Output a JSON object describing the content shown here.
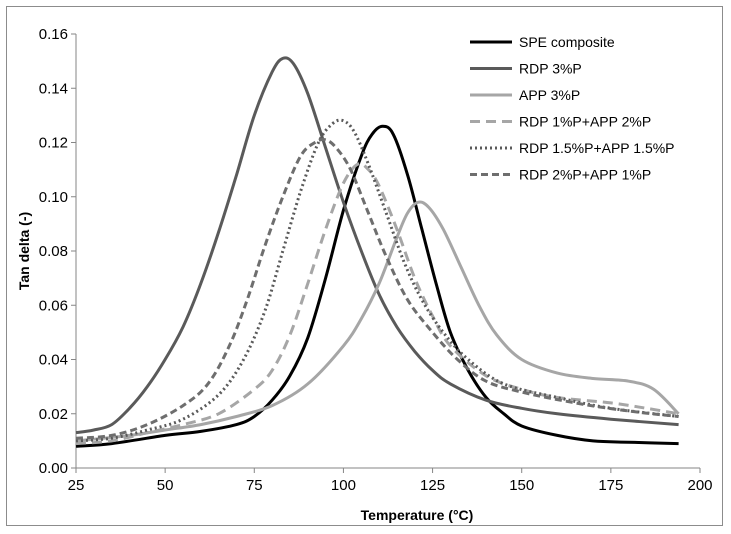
{
  "chart_data": {
    "type": "line",
    "xlabel": "Temperature (°C)",
    "ylabel": "Tan delta (-)",
    "xlim": [
      25,
      200
    ],
    "ylim": [
      0,
      0.16
    ],
    "x_ticks": [
      "25",
      "50",
      "75",
      "100",
      "125",
      "150",
      "175",
      "200"
    ],
    "y_ticks": [
      "0.00",
      "0.02",
      "0.04",
      "0.06",
      "0.08",
      "0.10",
      "0.12",
      "0.14",
      "0.16"
    ],
    "grid": false,
    "legend_position": "top-right",
    "series": [
      {
        "name": "SPE composite",
        "color": "#000000",
        "dash": "solid",
        "points": [
          [
            25,
            0.008
          ],
          [
            35,
            0.009
          ],
          [
            50,
            0.012
          ],
          [
            60,
            0.0135
          ],
          [
            70,
            0.016
          ],
          [
            75,
            0.019
          ],
          [
            80,
            0.025
          ],
          [
            85,
            0.034
          ],
          [
            90,
            0.048
          ],
          [
            95,
            0.07
          ],
          [
            100,
            0.095
          ],
          [
            105,
            0.115
          ],
          [
            108,
            0.123
          ],
          [
            111,
            0.126
          ],
          [
            114,
            0.123
          ],
          [
            118,
            0.108
          ],
          [
            122,
            0.088
          ],
          [
            126,
            0.068
          ],
          [
            130,
            0.05
          ],
          [
            135,
            0.036
          ],
          [
            140,
            0.026
          ],
          [
            145,
            0.02
          ],
          [
            150,
            0.0155
          ],
          [
            160,
            0.012
          ],
          [
            170,
            0.01
          ],
          [
            180,
            0.0095
          ],
          [
            194,
            0.009
          ]
        ]
      },
      {
        "name": "RDP 3%P",
        "color": "#5a5a5a",
        "dash": "solid",
        "points": [
          [
            25,
            0.013
          ],
          [
            30,
            0.014
          ],
          [
            35,
            0.016
          ],
          [
            40,
            0.022
          ],
          [
            45,
            0.03
          ],
          [
            50,
            0.04
          ],
          [
            55,
            0.052
          ],
          [
            60,
            0.068
          ],
          [
            65,
            0.087
          ],
          [
            70,
            0.108
          ],
          [
            75,
            0.13
          ],
          [
            80,
            0.146
          ],
          [
            83,
            0.151
          ],
          [
            86,
            0.149
          ],
          [
            90,
            0.138
          ],
          [
            95,
            0.118
          ],
          [
            100,
            0.098
          ],
          [
            105,
            0.08
          ],
          [
            110,
            0.064
          ],
          [
            115,
            0.052
          ],
          [
            120,
            0.043
          ],
          [
            125,
            0.036
          ],
          [
            130,
            0.031
          ],
          [
            140,
            0.025
          ],
          [
            150,
            0.022
          ],
          [
            160,
            0.02
          ],
          [
            175,
            0.018
          ],
          [
            194,
            0.016
          ]
        ]
      },
      {
        "name": "APP 3%P",
        "color": "#a6a6a6",
        "dash": "solid",
        "points": [
          [
            25,
            0.01
          ],
          [
            40,
            0.012
          ],
          [
            50,
            0.014
          ],
          [
            60,
            0.016
          ],
          [
            70,
            0.019
          ],
          [
            80,
            0.023
          ],
          [
            90,
            0.031
          ],
          [
            100,
            0.045
          ],
          [
            105,
            0.055
          ],
          [
            110,
            0.068
          ],
          [
            115,
            0.085
          ],
          [
            118,
            0.094
          ],
          [
            121,
            0.098
          ],
          [
            124,
            0.096
          ],
          [
            128,
            0.088
          ],
          [
            133,
            0.074
          ],
          [
            138,
            0.06
          ],
          [
            143,
            0.049
          ],
          [
            150,
            0.04
          ],
          [
            160,
            0.035
          ],
          [
            170,
            0.033
          ],
          [
            180,
            0.032
          ],
          [
            187,
            0.029
          ],
          [
            194,
            0.02
          ]
        ]
      },
      {
        "name": "RDP 1%P+APP 2%P",
        "color": "#a6a6a6",
        "dash": "10,6",
        "points": [
          [
            25,
            0.009
          ],
          [
            35,
            0.01
          ],
          [
            45,
            0.013
          ],
          [
            55,
            0.016
          ],
          [
            65,
            0.02
          ],
          [
            75,
            0.029
          ],
          [
            80,
            0.036
          ],
          [
            85,
            0.049
          ],
          [
            90,
            0.068
          ],
          [
            95,
            0.088
          ],
          [
            100,
            0.105
          ],
          [
            104,
            0.112
          ],
          [
            107,
            0.11
          ],
          [
            110,
            0.104
          ],
          [
            115,
            0.088
          ],
          [
            120,
            0.07
          ],
          [
            125,
            0.056
          ],
          [
            130,
            0.045
          ],
          [
            140,
            0.034
          ],
          [
            150,
            0.029
          ],
          [
            160,
            0.026
          ],
          [
            175,
            0.024
          ],
          [
            185,
            0.022
          ],
          [
            194,
            0.02
          ]
        ]
      },
      {
        "name": "RDP 1.5%P+APP 1.5%P",
        "color": "#5a5a5a",
        "dash": "2,3",
        "points": [
          [
            25,
            0.01
          ],
          [
            35,
            0.011
          ],
          [
            45,
            0.014
          ],
          [
            55,
            0.018
          ],
          [
            65,
            0.027
          ],
          [
            72,
            0.04
          ],
          [
            78,
            0.058
          ],
          [
            83,
            0.08
          ],
          [
            88,
            0.102
          ],
          [
            93,
            0.12
          ],
          [
            97,
            0.127
          ],
          [
            100,
            0.128
          ],
          [
            103,
            0.124
          ],
          [
            107,
            0.112
          ],
          [
            112,
            0.094
          ],
          [
            117,
            0.076
          ],
          [
            122,
            0.062
          ],
          [
            128,
            0.05
          ],
          [
            135,
            0.04
          ],
          [
            145,
            0.031
          ],
          [
            160,
            0.026
          ],
          [
            175,
            0.022
          ],
          [
            194,
            0.019
          ]
        ]
      },
      {
        "name": "RDP 2%P+APP 1%P",
        "color": "#6e6e6e",
        "dash": "7,4",
        "points": [
          [
            25,
            0.011
          ],
          [
            35,
            0.012
          ],
          [
            45,
            0.016
          ],
          [
            55,
            0.023
          ],
          [
            62,
            0.031
          ],
          [
            68,
            0.045
          ],
          [
            73,
            0.062
          ],
          [
            78,
            0.082
          ],
          [
            83,
            0.1
          ],
          [
            88,
            0.115
          ],
          [
            92,
            0.12
          ],
          [
            95,
            0.121
          ],
          [
            98,
            0.118
          ],
          [
            102,
            0.11
          ],
          [
            107,
            0.094
          ],
          [
            112,
            0.078
          ],
          [
            118,
            0.062
          ],
          [
            125,
            0.05
          ],
          [
            132,
            0.04
          ],
          [
            140,
            0.032
          ],
          [
            150,
            0.028
          ],
          [
            165,
            0.024
          ],
          [
            180,
            0.021
          ],
          [
            194,
            0.019
          ]
        ]
      }
    ]
  }
}
